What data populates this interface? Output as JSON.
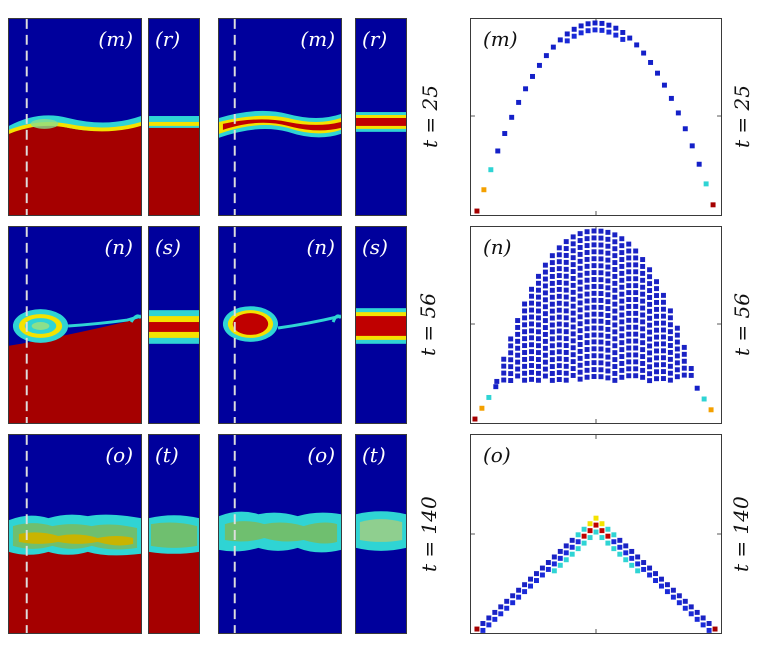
{
  "rows": [
    {
      "panels": [
        "(m)",
        "(r)",
        "(m)",
        "(r)"
      ],
      "scatter_label": "(m)",
      "time_label": "t = 25",
      "right_time_label": "t = 25"
    },
    {
      "panels": [
        "(n)",
        "(s)",
        "(n)",
        "(s)"
      ],
      "scatter_label": "(n)",
      "time_label": "t = 56",
      "right_time_label": "t = 56"
    },
    {
      "panels": [
        "(o)",
        "(t)",
        "(o)",
        "(t)"
      ],
      "scatter_label": "(o)",
      "time_label": "t = 140",
      "right_time_label": "t = 140"
    }
  ],
  "colors": {
    "background_fluid": "#00009c",
    "heavy_fluid": "#a50000",
    "frame": "#3a3a3a"
  }
}
